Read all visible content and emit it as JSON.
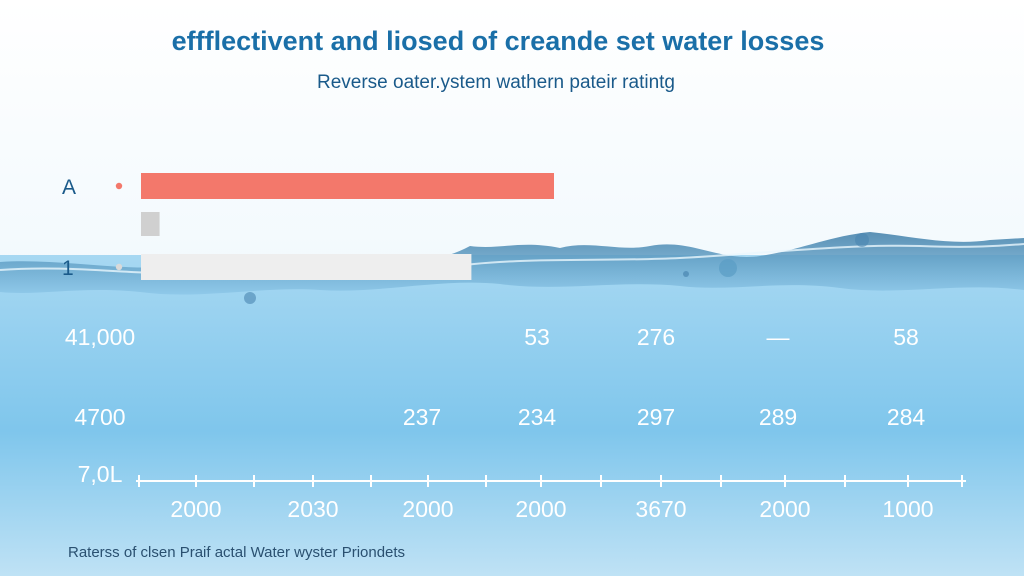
{
  "colors": {
    "title": "#1a6fa8",
    "subtitle": "#1a5a8a",
    "bar_primary": "#f3786b",
    "bar_gray": "#d0d0d0",
    "bar_light": "#eeeeee",
    "water_light": "#eef7fc",
    "water_mid": "#a7d8f2",
    "water_deep": "#6cbce8",
    "text_white": "#ffffff",
    "footer": "#2a5070"
  },
  "chart_data": {
    "type": "bar",
    "title": "effflectivent and liosed of creande set water losses",
    "subtitle": "Reverse oater.ystem wathern pateir ratintg",
    "bars": [
      {
        "label": "A",
        "value": 100,
        "color_key": "bar_primary",
        "dot": true
      },
      {
        "label": "",
        "value": 4.5,
        "color_key": "bar_gray",
        "dot": false
      },
      {
        "label": "1",
        "value": 80,
        "color_key": "bar_light",
        "dot": true
      }
    ],
    "table_rows": [
      {
        "label": "41,000",
        "cells": [
          "",
          "",
          "53",
          "276",
          "—",
          "58"
        ]
      },
      {
        "label": "4700",
        "cells": [
          "",
          "237",
          "234",
          "297",
          "289",
          "284"
        ]
      }
    ],
    "axis": {
      "label": "7,0L",
      "tick_labels": [
        "2000",
        "2030",
        "2000",
        "2000",
        "3670",
        "2000",
        "1000"
      ]
    },
    "footer": "Raterss of clsen Praif actal Water wyster Priondets"
  }
}
